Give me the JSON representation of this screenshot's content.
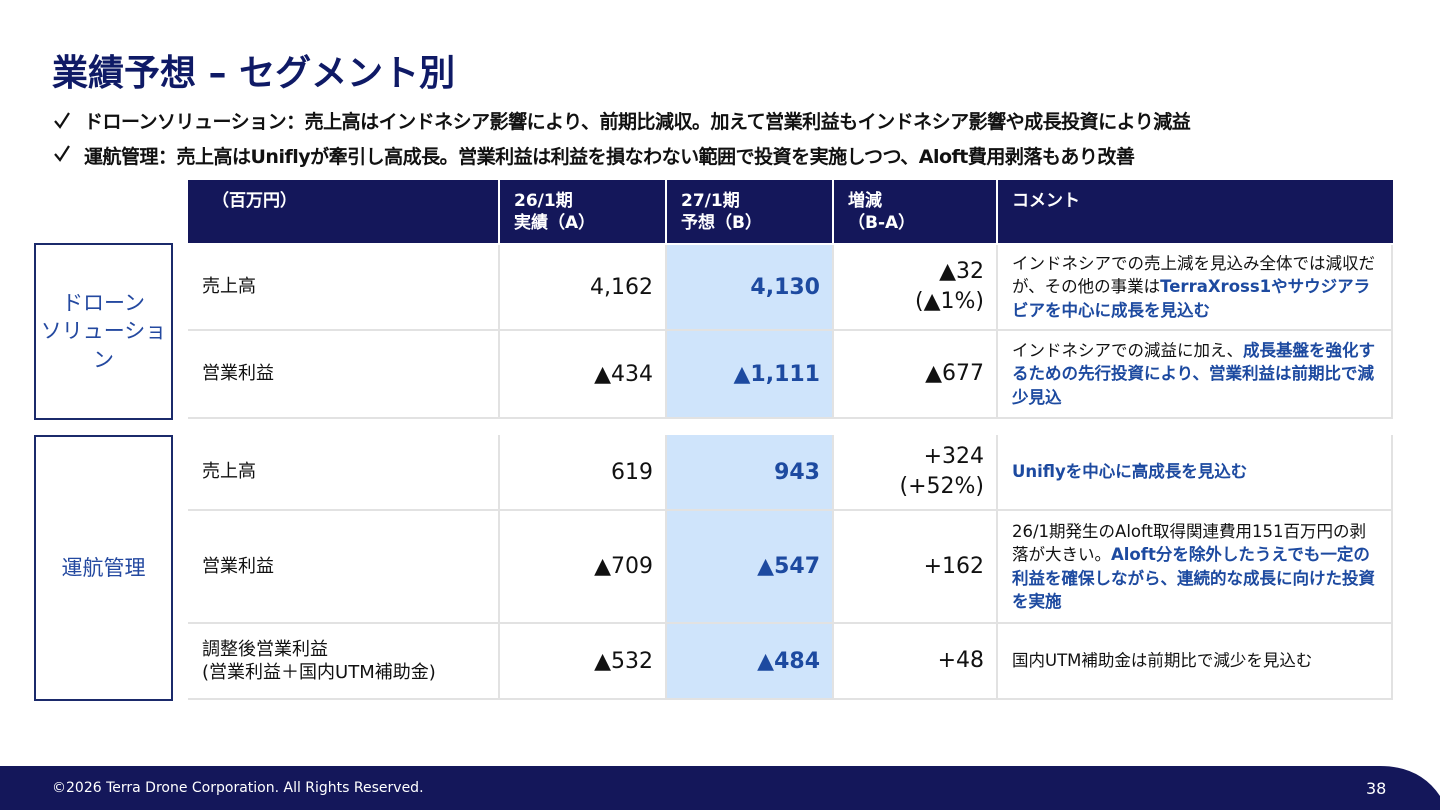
{
  "header": {
    "title": "業績予想 – セグメント別",
    "bullets": [
      "ドローンソリューション：売上高はインドネシア影響により、前期比減収。加えて営業利益もインドネシア影響や成長投資により減益",
      "運航管理：売上高はUniflyが牽引し高成長。営業利益は利益を損なわない範囲で投資を実施しつつ、Aloft費用剥落もあり改善"
    ]
  },
  "table": {
    "columns": [
      "（百万円）",
      "26/1期\n実績（A）",
      "27/1期\n予想（B）",
      "増減\n（B-A）",
      "コメント"
    ],
    "segments": [
      {
        "label": "ドローン\nソリューション",
        "rows": [
          {
            "item": "売上高",
            "actual": "4,162",
            "forecast": "4,130",
            "change": "▲32\n(▲1%)",
            "comment": [
              {
                "text": "インドネシアでの売上減を見込み全体では減収だが、その他の事業は",
                "bold": false
              },
              {
                "text": "TerraXross1やサウジアラビアを中心に成長を見込む",
                "bold": true
              }
            ]
          },
          {
            "item": "営業利益",
            "actual": "▲434",
            "forecast": "▲1,111",
            "change": "▲677",
            "comment": [
              {
                "text": "インドネシアでの減益に加え、",
                "bold": false
              },
              {
                "text": "成長基盤を強化するための先行投資により、営業利益は前期比で減少見込",
                "bold": true
              }
            ]
          }
        ]
      },
      {
        "label": "運航管理",
        "rows": [
          {
            "item": "売上高",
            "actual": "619",
            "forecast": "943",
            "change": "+324\n(+52%)",
            "comment": [
              {
                "text": "Uniflyを中心に高成長を見込む",
                "bold": true
              }
            ]
          },
          {
            "item": "営業利益",
            "actual": "▲709",
            "forecast": "▲547",
            "change": "+162",
            "comment": [
              {
                "text": "26/1期発生のAloft取得関連費用151百万円の剥落が大きい。",
                "bold": false
              },
              {
                "text": "Aloft分を除外したうえでも一定の利益を確保しながら、連続的な成長に向けた投資を実施",
                "bold": true
              }
            ]
          },
          {
            "item": "調整後営業利益\n(営業利益＋国内UTM補助金)",
            "actual": "▲532",
            "forecast": "▲484",
            "change": "+48",
            "comment": [
              {
                "text": "国内UTM補助金は前期比で減少を見込む",
                "bold": false
              }
            ]
          }
        ]
      }
    ]
  },
  "footer": {
    "copyright": "©2026 Terra Drone Corporation. All Rights Reserved.",
    "page": "38"
  }
}
